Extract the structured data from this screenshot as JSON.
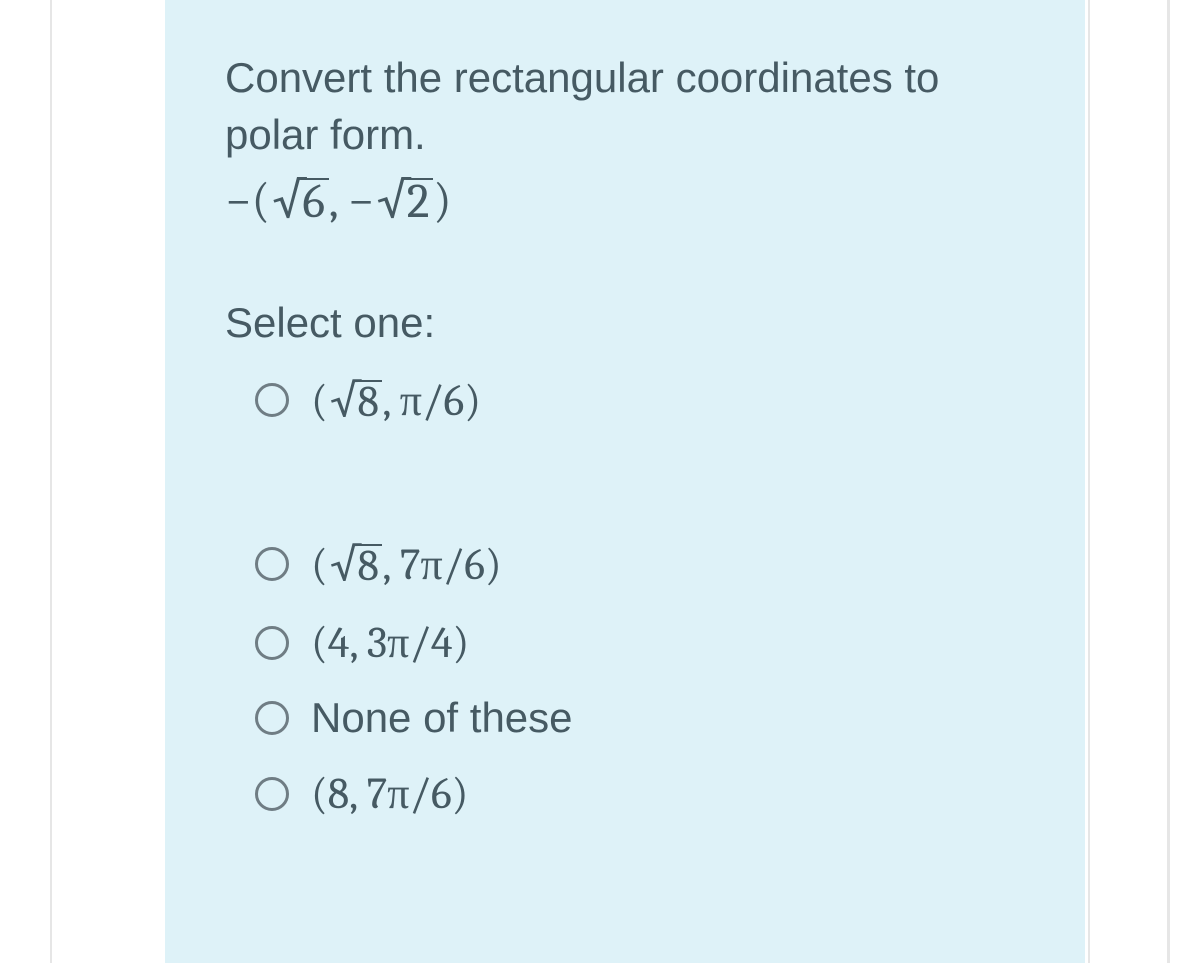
{
  "colors": {
    "card_bg": "#def2f8",
    "page_bg": "#ffffff",
    "text": "#465a63",
    "radio_border": "#6f7d84",
    "divider": "#e6e6e6"
  },
  "question": {
    "prompt": "Convert the rectangular coordinates to polar form.",
    "expression_minus": "−(",
    "expression_r1": "6",
    "expression_mid": ", −",
    "expression_r2": "2",
    "expression_close": ")",
    "select_label": "Select one:"
  },
  "options": [
    {
      "type": "math",
      "open": "(",
      "rad": "8",
      "rest": ", π/6)"
    },
    {
      "type": "math",
      "open": "(",
      "rad": "8",
      "rest": ", 7π/6)"
    },
    {
      "type": "math_plain",
      "text": "(4, 3π/4)"
    },
    {
      "type": "text",
      "text": "None of these"
    },
    {
      "type": "math_plain",
      "text": "(8, 7π/6)"
    }
  ]
}
